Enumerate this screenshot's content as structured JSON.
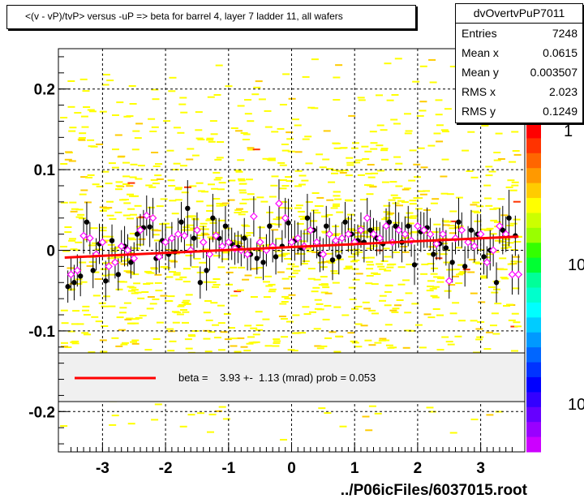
{
  "title": "<(v - vP)/tvP> versus  -uP => beta for barrel 4, layer 7 ladder 11, all wafers",
  "stats": {
    "name": "dvOvertvPuP7011",
    "rows": [
      {
        "key": "Entries",
        "value": "7248"
      },
      {
        "key": "Mean x",
        "value": "0.0615"
      },
      {
        "key": "Mean y",
        "value": "0.003507"
      },
      {
        "key": "RMS x",
        "value": "2.023"
      },
      {
        "key": "RMS y",
        "value": "0.1249"
      }
    ]
  },
  "legend": {
    "text": "beta =    3.93 +-  1.13 (mrad) prob = 0.053",
    "line_color": "#ff0000"
  },
  "footer": "../P06icFiles/6037015.root",
  "colors": {
    "fit": "#ff0000",
    "profile_black": "#000000",
    "profile_open": "#ff00ff",
    "hist_main": "#ffff00",
    "hist_hi": "#ffcc00",
    "hist_top": "#ff3300"
  },
  "chart_data": {
    "type": "scatter",
    "xlim": [
      -3.7,
      3.7
    ],
    "ylim": [
      -0.25,
      0.25
    ],
    "x_ticks": [
      "-3",
      "-2",
      "-1",
      "0",
      "1",
      "2",
      "3"
    ],
    "y_ticks": [
      "-0.2",
      "-0.1",
      "0",
      "0.1",
      "0.2"
    ],
    "grid": true,
    "colz_labels": [
      "1",
      "10",
      "10"
    ],
    "fit": {
      "x": [
        -3.6,
        3.6
      ],
      "y": [
        -0.009,
        0.017
      ]
    },
    "series_black": {
      "x": [
        -3.55,
        -3.45,
        -3.35,
        -3.25,
        -3.15,
        -3.05,
        -2.95,
        -2.85,
        -2.75,
        -2.65,
        -2.55,
        -2.45,
        -2.35,
        -2.25,
        -2.15,
        -2.05,
        -1.95,
        -1.85,
        -1.75,
        -1.65,
        -1.55,
        -1.45,
        -1.35,
        -1.25,
        -1.15,
        -1.05,
        -0.95,
        -0.85,
        -0.75,
        -0.65,
        -0.55,
        -0.45,
        -0.35,
        -0.25,
        -0.15,
        -0.05,
        0.05,
        0.15,
        0.25,
        0.35,
        0.45,
        0.55,
        0.65,
        0.75,
        0.85,
        0.95,
        1.05,
        1.15,
        1.25,
        1.35,
        1.45,
        1.55,
        1.65,
        1.75,
        1.85,
        1.95,
        2.05,
        2.15,
        2.25,
        2.35,
        2.45,
        2.55,
        2.65,
        2.75,
        2.85,
        2.95,
        3.05,
        3.15,
        3.25,
        3.35,
        3.45,
        3.55
      ],
      "y": [
        -0.045,
        -0.04,
        -0.032,
        0.035,
        -0.025,
        0.008,
        -0.038,
        0.012,
        -0.03,
        0.005,
        -0.015,
        0.02,
        0.028,
        0.029,
        -0.01,
        0.012,
        -0.005,
        -0.002,
        0.035,
        0.052,
        0.015,
        -0.04,
        -0.025,
        0.04,
        0.015,
        0.03,
        0.008,
        0.004,
        0.015,
        -0.005,
        -0.01,
        -0.015,
        0.03,
        -0.008,
        0.005,
        0.034,
        0.012,
        0.003,
        0.04,
        0.025,
        -0.005,
        0.03,
        -0.012,
        -0.008,
        0.035,
        0.02,
        0.012,
        0.01,
        0.025,
        0.015,
        0.008,
        0.035,
        0.03,
        0.01,
        0.03,
        -0.018,
        0.023,
        0.028,
        -0.005,
        0.008,
        0.003,
        -0.015,
        0.035,
        -0.02,
        0.025,
        0.02,
        -0.008,
        0.0,
        -0.04,
        0.025,
        0.04,
        0.018
      ],
      "err": [
        0.02,
        0.022,
        0.025,
        0.025,
        0.022,
        0.025,
        0.025,
        0.02,
        0.02,
        0.025,
        0.02,
        0.02,
        0.022,
        0.025,
        0.02,
        0.022,
        0.02,
        0.02,
        0.025,
        0.035,
        0.025,
        0.02,
        0.025,
        0.03,
        0.025,
        0.025,
        0.02,
        0.02,
        0.025,
        0.02,
        0.02,
        0.022,
        0.025,
        0.022,
        0.02,
        0.03,
        0.025,
        0.022,
        0.03,
        0.025,
        0.022,
        0.025,
        0.025,
        0.022,
        0.025,
        0.025,
        0.02,
        0.025,
        0.025,
        0.022,
        0.022,
        0.025,
        0.03,
        0.025,
        0.025,
        0.025,
        0.025,
        0.025,
        0.022,
        0.02,
        0.022,
        0.025,
        0.03,
        0.025,
        0.025,
        0.025,
        0.022,
        0.025,
        0.025,
        0.03,
        0.035,
        0.025
      ]
    },
    "series_open": {
      "x": [
        -3.5,
        -3.4,
        -3.3,
        -3.2,
        -3.1,
        -3.0,
        -2.9,
        -2.8,
        -2.7,
        -2.6,
        -2.5,
        -2.4,
        -2.3,
        -2.2,
        -2.1,
        -2.0,
        -1.9,
        -1.8,
        -1.7,
        -1.6,
        -1.5,
        -1.4,
        -1.3,
        -1.2,
        -1.1,
        -1.0,
        -0.9,
        -0.8,
        -0.7,
        -0.6,
        -0.5,
        -0.4,
        -0.3,
        -0.2,
        -0.1,
        0.0,
        0.1,
        0.2,
        0.3,
        0.4,
        0.5,
        0.6,
        0.7,
        0.8,
        0.9,
        1.0,
        1.1,
        1.2,
        1.3,
        1.4,
        1.5,
        1.6,
        1.7,
        1.8,
        1.9,
        2.0,
        2.1,
        2.2,
        2.3,
        2.4,
        2.5,
        2.6,
        2.7,
        2.8,
        2.9,
        3.0,
        3.1,
        3.2,
        3.3,
        3.4,
        3.5,
        3.6
      ],
      "y": [
        -0.03,
        -0.025,
        0.018,
        0.015,
        -0.005,
        0.01,
        -0.02,
        -0.015,
        0.005,
        0.0,
        -0.01,
        0.025,
        0.043,
        0.04,
        -0.008,
        0.01,
        0.015,
        0.02,
        0.018,
        0.0,
        0.025,
        0.01,
        -0.005,
        0.018,
        0.005,
        0.01,
        0.002,
        0.0,
        -0.005,
        0.042,
        0.01,
        0.0,
        0.005,
        0.058,
        0.04,
        0.01,
        0.015,
        0.005,
        0.025,
        0.01,
        -0.005,
        0.02,
        0.012,
        0.015,
        0.02,
        0.01,
        0.025,
        0.04,
        0.02,
        0.015,
        0.03,
        0.01,
        0.025,
        0.02,
        0.012,
        0.03,
        0.025,
        0.02,
        0.008,
        0.02,
        -0.038,
        0.015,
        0.025,
        0.01,
        0.005,
        0.02,
        -0.015,
        0.0,
        0.03,
        0.02,
        -0.03,
        -0.03
      ],
      "err": [
        0.02,
        0.02,
        0.022,
        0.02,
        0.02,
        0.022,
        0.02,
        0.02,
        0.02,
        0.02,
        0.02,
        0.02,
        0.025,
        0.025,
        0.02,
        0.02,
        0.02,
        0.02,
        0.022,
        0.02,
        0.022,
        0.02,
        0.02,
        0.022,
        0.02,
        0.02,
        0.02,
        0.02,
        0.02,
        0.025,
        0.02,
        0.02,
        0.02,
        0.03,
        0.025,
        0.02,
        0.02,
        0.02,
        0.022,
        0.02,
        0.02,
        0.02,
        0.02,
        0.02,
        0.022,
        0.02,
        0.022,
        0.025,
        0.02,
        0.02,
        0.022,
        0.02,
        0.022,
        0.022,
        0.02,
        0.022,
        0.022,
        0.02,
        0.02,
        0.02,
        0.022,
        0.02,
        0.022,
        0.02,
        0.02,
        0.022,
        0.02,
        0.02,
        0.022,
        0.022,
        0.025,
        0.025
      ]
    }
  }
}
